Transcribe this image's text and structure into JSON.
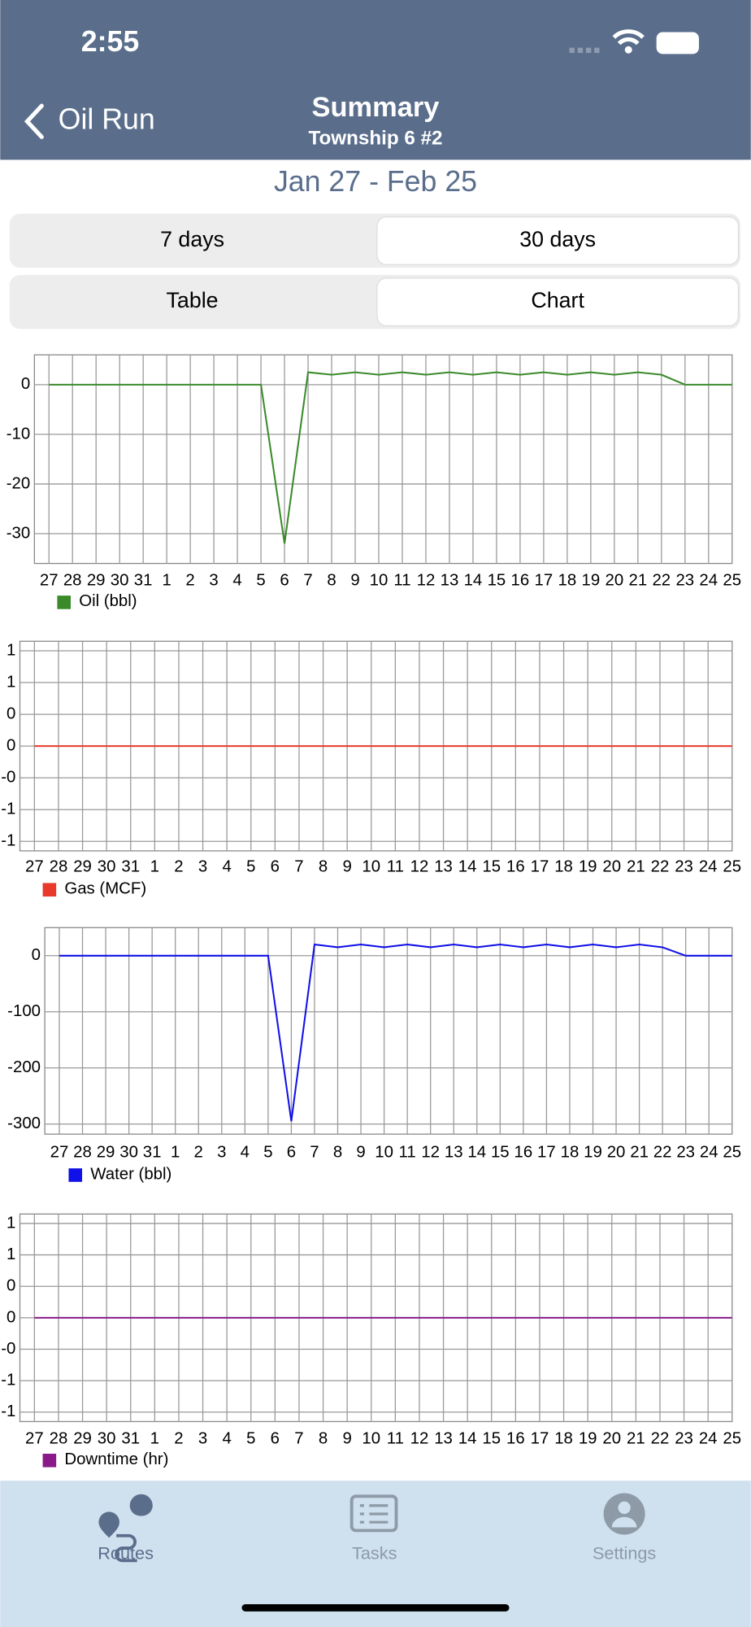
{
  "status_bar": {
    "time": "2:55"
  },
  "nav": {
    "back": "Oil Run",
    "title": "Summary",
    "subtitle": "Township 6 #2"
  },
  "date_range": "Jan 27 - Feb 25",
  "segments": [
    {
      "options": [
        "7 days",
        "30 days"
      ],
      "selected": 1
    },
    {
      "options": [
        "Table",
        "Chart"
      ],
      "selected": 1
    }
  ],
  "chart_data": [
    {
      "type": "line",
      "categories": [
        "27",
        "28",
        "29",
        "30",
        "31",
        "1",
        "2",
        "3",
        "4",
        "5",
        "6",
        "7",
        "8",
        "9",
        "10",
        "11",
        "12",
        "13",
        "14",
        "15",
        "16",
        "17",
        "18",
        "19",
        "20",
        "21",
        "22",
        "23",
        "24",
        "25"
      ],
      "series": [
        {
          "name": "Oil (bbl)",
          "color": "#3a8a2a",
          "values": [
            0,
            0,
            0,
            0,
            0,
            0,
            0,
            0,
            0,
            0,
            -32,
            2.5,
            2,
            2.5,
            2,
            2.5,
            2,
            2.5,
            2,
            2.5,
            2,
            2.5,
            2,
            2.5,
            2,
            2.5,
            2,
            0,
            0,
            0
          ]
        }
      ],
      "ylim": [
        -36,
        6
      ],
      "yticks": [
        0,
        -10,
        -20,
        -30
      ],
      "grid": true,
      "legend": "bottom-left"
    },
    {
      "type": "line",
      "categories": [
        "27",
        "28",
        "29",
        "30",
        "31",
        "1",
        "2",
        "3",
        "4",
        "5",
        "6",
        "7",
        "8",
        "9",
        "10",
        "11",
        "12",
        "13",
        "14",
        "15",
        "16",
        "17",
        "18",
        "19",
        "20",
        "21",
        "22",
        "23",
        "24",
        "25"
      ],
      "series": [
        {
          "name": "Gas (MCF)",
          "color": "#e8392a",
          "values": [
            0,
            0,
            0,
            0,
            0,
            0,
            0,
            0,
            0,
            0,
            0,
            0,
            0,
            0,
            0,
            0,
            0,
            0,
            0,
            0,
            0,
            0,
            0,
            0,
            0,
            0,
            0,
            0,
            0,
            0
          ]
        }
      ],
      "ylim": [
        -1.1,
        1.1
      ],
      "yticks": [
        1,
        {
          "value": 0.667,
          "label": "1"
        },
        {
          "value": 0.333,
          "label": "0"
        },
        0,
        {
          "value": -0.333,
          "label": "-0"
        },
        {
          "value": -0.667,
          "label": "-1"
        },
        -1
      ],
      "grid": true,
      "legend": "bottom-left"
    },
    {
      "type": "line",
      "categories": [
        "27",
        "28",
        "29",
        "30",
        "31",
        "1",
        "2",
        "3",
        "4",
        "5",
        "6",
        "7",
        "8",
        "9",
        "10",
        "11",
        "12",
        "13",
        "14",
        "15",
        "16",
        "17",
        "18",
        "19",
        "20",
        "21",
        "22",
        "23",
        "24",
        "25"
      ],
      "series": [
        {
          "name": "Water (bbl)",
          "color": "#1010e8",
          "values": [
            0,
            0,
            0,
            0,
            0,
            0,
            0,
            0,
            0,
            0,
            -295,
            20,
            15,
            20,
            15,
            20,
            15,
            20,
            15,
            20,
            15,
            20,
            15,
            20,
            15,
            20,
            15,
            0,
            0,
            0
          ]
        }
      ],
      "ylim": [
        -318,
        50
      ],
      "yticks": [
        0,
        -100,
        -200,
        -300
      ],
      "grid": true,
      "legend": "bottom-left"
    },
    {
      "type": "line",
      "categories": [
        "27",
        "28",
        "29",
        "30",
        "31",
        "1",
        "2",
        "3",
        "4",
        "5",
        "6",
        "7",
        "8",
        "9",
        "10",
        "11",
        "12",
        "13",
        "14",
        "15",
        "16",
        "17",
        "18",
        "19",
        "20",
        "21",
        "22",
        "23",
        "24",
        "25"
      ],
      "series": [
        {
          "name": "Downtime (hr)",
          "color": "#8a1a8a",
          "values": [
            0,
            0,
            0,
            0,
            0,
            0,
            0,
            0,
            0,
            0,
            0,
            0,
            0,
            0,
            0,
            0,
            0,
            0,
            0,
            0,
            0,
            0,
            0,
            0,
            0,
            0,
            0,
            0,
            0,
            0
          ]
        }
      ],
      "ylim": [
        -1.1,
        1.1
      ],
      "yticks": [
        1,
        {
          "value": 0.667,
          "label": "1"
        },
        {
          "value": 0.333,
          "label": "0"
        },
        0,
        {
          "value": -0.333,
          "label": "-0"
        },
        {
          "value": -0.667,
          "label": "-1"
        },
        -1
      ],
      "grid": true,
      "legend": "bottom-left"
    }
  ],
  "tab_bar": {
    "items": [
      {
        "label": "Routes",
        "active": true
      },
      {
        "label": "Tasks",
        "active": false
      },
      {
        "label": "Settings",
        "active": false
      }
    ]
  }
}
